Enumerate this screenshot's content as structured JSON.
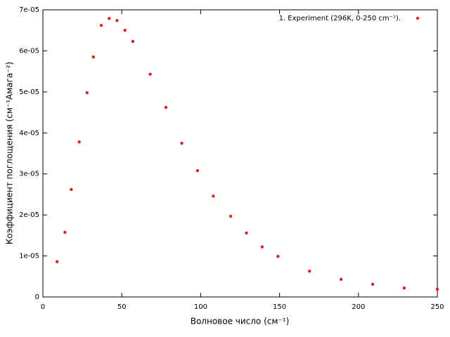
{
  "chart_data": {
    "type": "scatter",
    "x_label": "Волновое число (см⁻¹)",
    "y_label": "Коэффициент поглощения (см⁻¹Амага⁻²)",
    "series": [
      {
        "name": "1. Experiment (296K, 0-250 cm⁻¹).",
        "color": "#e0201a",
        "x": [
          9,
          14,
          18,
          23,
          28,
          32,
          37,
          42,
          47,
          52,
          57,
          68,
          78,
          88,
          98,
          108,
          119,
          129,
          139,
          149,
          169,
          189,
          209,
          229,
          250
        ],
        "values": [
          8.6e-06,
          1.575e-05,
          2.62e-05,
          3.78e-05,
          4.98e-05,
          5.85e-05,
          6.62e-05,
          6.79e-05,
          6.74e-05,
          6.5e-05,
          6.23e-05,
          5.43e-05,
          4.62e-05,
          3.75e-05,
          3.08e-05,
          2.46e-05,
          1.97e-05,
          1.56e-05,
          1.22e-05,
          9.9e-06,
          6.3e-06,
          4.3e-06,
          3.1e-06,
          2.2e-06,
          1.9e-06
        ]
      }
    ],
    "xlim": [
      0,
      250
    ],
    "xticks": [
      0,
      50,
      100,
      150,
      200,
      250
    ],
    "ylim": [
      0,
      7e-05
    ],
    "yticks": [
      0,
      {
        "value": 1e-05,
        "label": "1e-05"
      },
      {
        "value": 2e-05,
        "label": "2e-05"
      },
      {
        "value": 3e-05,
        "label": "3e-05"
      },
      {
        "value": 4e-05,
        "label": "4e-05"
      },
      {
        "value": 5e-05,
        "label": "5e-05"
      },
      {
        "value": 6e-05,
        "label": "6e-05"
      },
      {
        "value": 7e-05,
        "label": "7e-05"
      }
    ],
    "legend": "top-right"
  }
}
